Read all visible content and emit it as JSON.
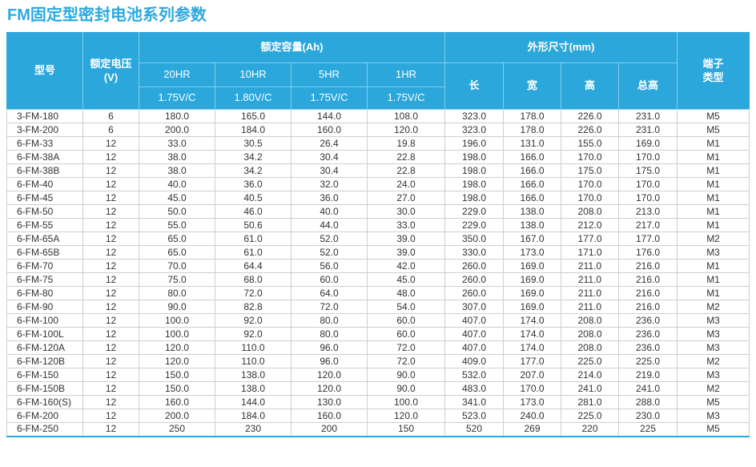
{
  "page": {
    "title": "FM固定型密封电池系列参数"
  },
  "colors": {
    "header_bg": "#2BA7DC",
    "title_text": "#2BA9E1",
    "header_divider": "#86CDEC",
    "grid_line": "#CFCFCF",
    "body_text": "#333333",
    "page_bg": "#FFFFFF"
  },
  "table": {
    "header": {
      "model": "型号",
      "voltage": "额定电压(V)",
      "capacity_group": "额定容量(Ah)",
      "dimensions_group": "外形尺寸(mm)",
      "terminal": "端子类型",
      "rate_columns": [
        {
          "rate": "20HR",
          "cutoff": "1.75V/C"
        },
        {
          "rate": "10HR",
          "cutoff": "1.80V/C"
        },
        {
          "rate": "5HR",
          "cutoff": "1.75V/C"
        },
        {
          "rate": "1HR",
          "cutoff": "1.75V/C"
        }
      ],
      "dim_columns": [
        "长",
        "宽",
        "高",
        "总高"
      ]
    },
    "column_keys": [
      "model",
      "voltage",
      "capacity-20hr",
      "capacity-10hr",
      "capacity-5hr",
      "capacity-1hr",
      "length",
      "width",
      "height",
      "total-height",
      "terminal-type"
    ],
    "rows": [
      [
        "3-FM-180",
        "6",
        "180.0",
        "165.0",
        "144.0",
        "108.0",
        "323.0",
        "178.0",
        "226.0",
        "231.0",
        "M5"
      ],
      [
        "3-FM-200",
        "6",
        "200.0",
        "184.0",
        "160.0",
        "120.0",
        "323.0",
        "178.0",
        "226.0",
        "231.0",
        "M5"
      ],
      [
        "6-FM-33",
        "12",
        "33.0",
        "30.5",
        "26.4",
        "19.8",
        "196.0",
        "131.0",
        "155.0",
        "169.0",
        "M1"
      ],
      [
        "6-FM-38A",
        "12",
        "38.0",
        "34.2",
        "30.4",
        "22.8",
        "198.0",
        "166.0",
        "170.0",
        "170.0",
        "M1"
      ],
      [
        "6-FM-38B",
        "12",
        "38.0",
        "34.2",
        "30.4",
        "22.8",
        "198.0",
        "166.0",
        "175.0",
        "175.0",
        "M1"
      ],
      [
        "6-FM-40",
        "12",
        "40.0",
        "36.0",
        "32.0",
        "24.0",
        "198.0",
        "166.0",
        "170.0",
        "170.0",
        "M1"
      ],
      [
        "6-FM-45",
        "12",
        "45.0",
        "40.5",
        "36.0",
        "27.0",
        "198.0",
        "166.0",
        "170.0",
        "170.0",
        "M1"
      ],
      [
        "6-FM-50",
        "12",
        "50.0",
        "46.0",
        "40.0",
        "30.0",
        "229.0",
        "138.0",
        "208.0",
        "213.0",
        "M1"
      ],
      [
        "6-FM-55",
        "12",
        "55.0",
        "50.6",
        "44.0",
        "33.0",
        "229.0",
        "138.0",
        "212.0",
        "217.0",
        "M1"
      ],
      [
        "6-FM-65A",
        "12",
        "65.0",
        "61.0",
        "52.0",
        "39.0",
        "350.0",
        "167.0",
        "177.0",
        "177.0",
        "M2"
      ],
      [
        "6-FM-65B",
        "12",
        "65.0",
        "61.0",
        "52.0",
        "39.0",
        "330.0",
        "173.0",
        "171.0",
        "176.0",
        "M3"
      ],
      [
        "6-FM-70",
        "12",
        "70.0",
        "64.4",
        "56.0",
        "42.0",
        "260.0",
        "169.0",
        "211.0",
        "216.0",
        "M1"
      ],
      [
        "6-FM-75",
        "12",
        "75.0",
        "68.0",
        "60.0",
        "45.0",
        "260.0",
        "169.0",
        "211.0",
        "216.0",
        "M1"
      ],
      [
        "6-FM-80",
        "12",
        "80.0",
        "72.0",
        "64.0",
        "48.0",
        "260.0",
        "169.0",
        "211.0",
        "216.0",
        "M1"
      ],
      [
        "6-FM-90",
        "12",
        "90.0",
        "82.8",
        "72.0",
        "54.0",
        "307.0",
        "169.0",
        "211.0",
        "216.0",
        "M2"
      ],
      [
        "6-FM-100",
        "12",
        "100.0",
        "92.0",
        "80.0",
        "60.0",
        "407.0",
        "174.0",
        "208.0",
        "236.0",
        "M3"
      ],
      [
        "6-FM-100L",
        "12",
        "100.0",
        "92.0",
        "80.0",
        "60.0",
        "407.0",
        "174.0",
        "208.0",
        "236.0",
        "M3"
      ],
      [
        "6-FM-120A",
        "12",
        "120.0",
        "110.0",
        "96.0",
        "72.0",
        "407.0",
        "174.0",
        "208.0",
        "236.0",
        "M3"
      ],
      [
        "6-FM-120B",
        "12",
        "120.0",
        "110.0",
        "96.0",
        "72.0",
        "409.0",
        "177.0",
        "225.0",
        "225.0",
        "M2"
      ],
      [
        "6-FM-150",
        "12",
        "150.0",
        "138.0",
        "120.0",
        "90.0",
        "532.0",
        "207.0",
        "214.0",
        "219.0",
        "M3"
      ],
      [
        "6-FM-150B",
        "12",
        "150.0",
        "138.0",
        "120.0",
        "90.0",
        "483.0",
        "170.0",
        "241.0",
        "241.0",
        "M2"
      ],
      [
        "6-FM-160(S)",
        "12",
        "160.0",
        "144.0",
        "130.0",
        "100.0",
        "341.0",
        "173.0",
        "281.0",
        "288.0",
        "M5"
      ],
      [
        "6-FM-200",
        "12",
        "200.0",
        "184.0",
        "160.0",
        "120.0",
        "523.0",
        "240.0",
        "225.0",
        "230.0",
        "M3"
      ],
      [
        "6-FM-250",
        "12",
        "250",
        "230",
        "200",
        "150",
        "520",
        "269",
        "220",
        "225",
        "M5"
      ]
    ]
  }
}
